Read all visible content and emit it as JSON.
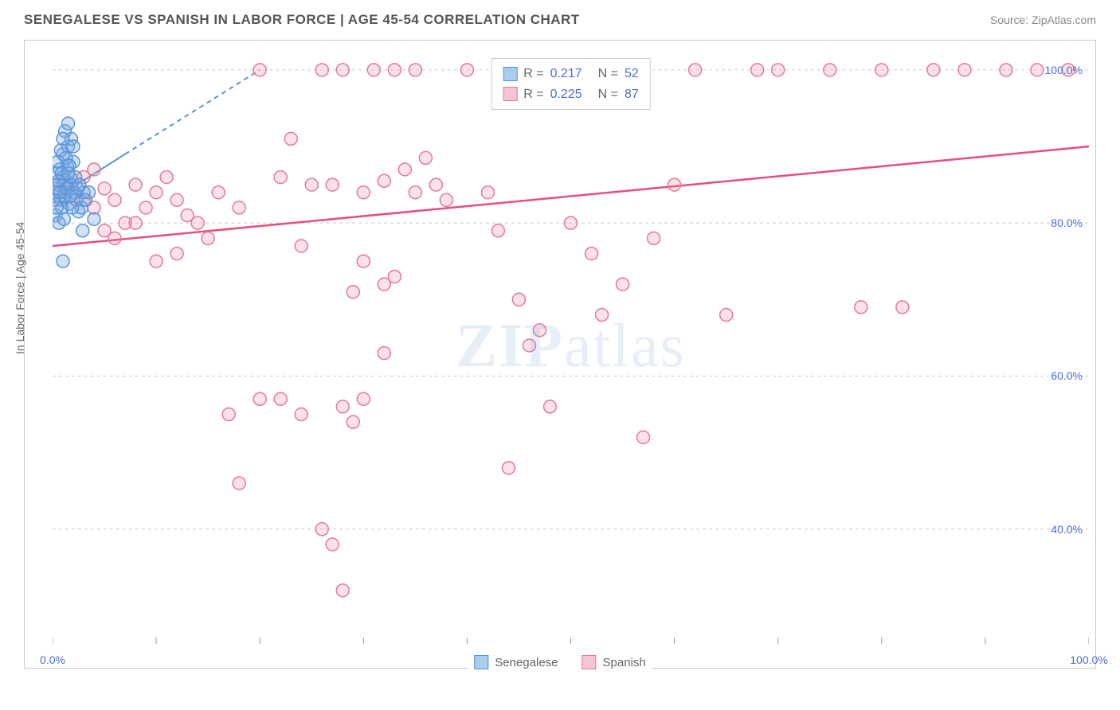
{
  "title": "SENEGALESE VS SPANISH IN LABOR FORCE | AGE 45-54 CORRELATION CHART",
  "source_label": "Source: ZipAtlas.com",
  "watermark": {
    "bold": "ZIP",
    "rest": "atlas"
  },
  "y_axis_label": "In Labor Force | Age 45-54",
  "chart": {
    "type": "scatter",
    "xlim": [
      0,
      100
    ],
    "ylim": [
      25,
      103
    ],
    "x_ticks": [
      0,
      10,
      20,
      30,
      40,
      50,
      60,
      70,
      80,
      90,
      100
    ],
    "x_tick_labels_shown": {
      "0": "0.0%",
      "100": "100.0%"
    },
    "y_gridlines": [
      40,
      60,
      80,
      100
    ],
    "y_tick_labels": {
      "40": "40.0%",
      "60": "60.0%",
      "80": "80.0%",
      "100": "100.0%"
    },
    "background_color": "#ffffff",
    "grid_color": "#cccccc",
    "grid_dash": "4,4",
    "axis_color": "#999999",
    "marker_radius": 8,
    "marker_stroke_width": 1.5,
    "series_a": {
      "name": "Senegalese",
      "fill": "rgba(120,170,230,0.35)",
      "stroke": "#5a94d6",
      "swatch_fill": "#a9cdef",
      "swatch_border": "#5a94d6",
      "R_label": "R =",
      "R": "0.217",
      "N_label": "N =",
      "N": "52",
      "trend_solid": {
        "x1": 0,
        "y1": 83,
        "x2": 7,
        "y2": 89
      },
      "trend_dashed": {
        "x1": 7,
        "y1": 89,
        "x2": 20,
        "y2": 100
      },
      "trend_color": "#5a94d6",
      "trend_width": 2,
      "points": [
        [
          0.2,
          84.5
        ],
        [
          0.5,
          85
        ],
        [
          0.8,
          83
        ],
        [
          1.0,
          86
        ],
        [
          1.2,
          84
        ],
        [
          1.4,
          87.5
        ],
        [
          1.6,
          82.5
        ],
        [
          1.0,
          89
        ],
        [
          1.5,
          90
        ],
        [
          2.0,
          88
        ],
        [
          0.3,
          81
        ],
        [
          0.6,
          80
        ],
        [
          0.9,
          82
        ],
        [
          1.1,
          83.5
        ],
        [
          1.3,
          85.5
        ],
        [
          1.7,
          86
        ],
        [
          2.1,
          84
        ],
        [
          0.4,
          86.5
        ],
        [
          0.7,
          87
        ],
        [
          1.8,
          85
        ],
        [
          2.3,
          83
        ],
        [
          2.5,
          81.5
        ],
        [
          3.0,
          84
        ],
        [
          1.2,
          92
        ],
        [
          1.5,
          93
        ],
        [
          1.8,
          91
        ],
        [
          2.0,
          90
        ],
        [
          0.5,
          88
        ],
        [
          0.8,
          89.5
        ],
        [
          1.0,
          91
        ],
        [
          1.3,
          88.5
        ],
        [
          1.6,
          87.5
        ],
        [
          2.2,
          86
        ],
        [
          2.8,
          82
        ],
        [
          3.2,
          83
        ],
        [
          0.3,
          84
        ],
        [
          0.6,
          85.5
        ],
        [
          0.9,
          86.5
        ],
        [
          1.4,
          84.5
        ],
        [
          1.9,
          82
        ],
        [
          2.4,
          84.5
        ],
        [
          0.2,
          83
        ],
        [
          1.1,
          80.5
        ],
        [
          1.7,
          83.5
        ],
        [
          2.6,
          85
        ],
        [
          3.5,
          84
        ],
        [
          0.4,
          82
        ],
        [
          0.7,
          84
        ],
        [
          1.5,
          86.5
        ],
        [
          2.9,
          79
        ],
        [
          1.0,
          75
        ],
        [
          4.0,
          80.5
        ]
      ]
    },
    "series_b": {
      "name": "Spanish",
      "fill": "rgba(240,140,165,0.25)",
      "stroke": "#e6789a",
      "swatch_fill": "#f6c5d2",
      "swatch_border": "#e6789a",
      "R_label": "R =",
      "R": "0.225",
      "N_label": "N =",
      "N": "87",
      "trend_solid": {
        "x1": 0,
        "y1": 77,
        "x2": 100,
        "y2": 90
      },
      "trend_color": "#e84e7a",
      "trend_width": 2.5,
      "points": [
        [
          1,
          85
        ],
        [
          2,
          84
        ],
        [
          3,
          83
        ],
        [
          4,
          82
        ],
        [
          5,
          84.5
        ],
        [
          3,
          86
        ],
        [
          4,
          87
        ],
        [
          6,
          83
        ],
        [
          7,
          80
        ],
        [
          8,
          85
        ],
        [
          9,
          82
        ],
        [
          10,
          84
        ],
        [
          11,
          86
        ],
        [
          12,
          83
        ],
        [
          13,
          81
        ],
        [
          5,
          79
        ],
        [
          6,
          78
        ],
        [
          8,
          80
        ],
        [
          10,
          75
        ],
        [
          12,
          76
        ],
        [
          14,
          80
        ],
        [
          15,
          78
        ],
        [
          16,
          84
        ],
        [
          18,
          82
        ],
        [
          20,
          100
        ],
        [
          22,
          86
        ],
        [
          23,
          91
        ],
        [
          24,
          77
        ],
        [
          25,
          85
        ],
        [
          26,
          100
        ],
        [
          27,
          85
        ],
        [
          28,
          100
        ],
        [
          29,
          71
        ],
        [
          30,
          84
        ],
        [
          31,
          100
        ],
        [
          32,
          85.5
        ],
        [
          33,
          100
        ],
        [
          34,
          87
        ],
        [
          35,
          100
        ],
        [
          30,
          75
        ],
        [
          32,
          72
        ],
        [
          20,
          57
        ],
        [
          22,
          57
        ],
        [
          24,
          55
        ],
        [
          26,
          40
        ],
        [
          27,
          38
        ],
        [
          28,
          56
        ],
        [
          29,
          54
        ],
        [
          17,
          55
        ],
        [
          18,
          46
        ],
        [
          28,
          32
        ],
        [
          30,
          57
        ],
        [
          32,
          63
        ],
        [
          33,
          73
        ],
        [
          35,
          84
        ],
        [
          36,
          88.5
        ],
        [
          37,
          85
        ],
        [
          38,
          83
        ],
        [
          40,
          100
        ],
        [
          42,
          84
        ],
        [
          43,
          79
        ],
        [
          44,
          48
        ],
        [
          45,
          70
        ],
        [
          46,
          64
        ],
        [
          47,
          66
        ],
        [
          48,
          100
        ],
        [
          50,
          80
        ],
        [
          52,
          76
        ],
        [
          53,
          68
        ],
        [
          55,
          72
        ],
        [
          57,
          52
        ],
        [
          58,
          78
        ],
        [
          60,
          85
        ],
        [
          48,
          56
        ],
        [
          62,
          100
        ],
        [
          65,
          68
        ],
        [
          68,
          100
        ],
        [
          70,
          100
        ],
        [
          75,
          100
        ],
        [
          78,
          69
        ],
        [
          80,
          100
        ],
        [
          82,
          69
        ],
        [
          85,
          100
        ],
        [
          88,
          100
        ],
        [
          92,
          100
        ],
        [
          95,
          100
        ],
        [
          98,
          100
        ]
      ]
    }
  }
}
